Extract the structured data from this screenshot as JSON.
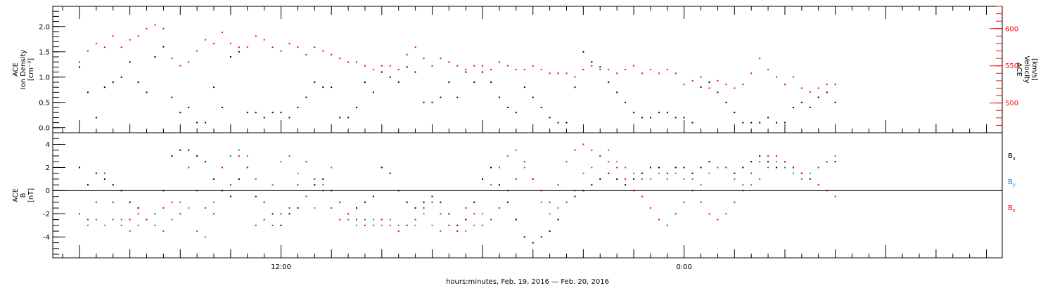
{
  "chart_data": [
    {
      "type": "scatter",
      "panel": "ion-density-velocity",
      "ylabel_left": [
        "ACE",
        "Ion Density",
        "[cm⁻³]"
      ],
      "ylabel_right": [
        "ACE",
        "Velocity",
        "[km/s]"
      ],
      "left_ticks": [
        "0.0",
        "0.5",
        "1.0",
        "1.5",
        "2.0"
      ],
      "right_ticks": [
        "500",
        "550",
        "600"
      ],
      "left_ylim": [
        -0.1,
        2.4
      ],
      "right_ylim": [
        460,
        630
      ],
      "left_color": "#000000",
      "right_color": "#ff0000",
      "series": [
        {
          "axis": "left",
          "color": "#000000",
          "x": [
            0.0,
            0.5,
            1.0,
            1.5,
            2.0,
            2.5,
            3.0,
            3.5,
            4.0,
            4.5,
            5.0,
            5.5,
            6.0,
            6.5,
            7.0,
            7.5,
            8.0,
            8.5,
            9.0,
            9.5,
            10.0,
            10.5,
            11.0,
            11.5,
            12.0,
            12.5,
            13.0,
            13.5,
            14.0,
            14.5,
            15.0,
            15.5,
            16.0,
            16.5,
            17.0,
            17.5,
            18.0,
            18.5,
            19.0,
            19.5,
            20.0,
            20.5,
            21.0,
            21.5,
            22.0,
            22.5,
            23.0,
            23.5,
            24.0,
            24.5,
            25.0,
            25.5,
            26.0,
            26.5,
            27.0,
            27.5,
            28.0,
            28.5,
            29.0,
            29.5,
            30.0,
            30.5,
            31.0,
            31.5,
            32.0,
            32.5,
            33.0,
            33.5,
            34.0,
            34.5,
            35.0,
            35.5,
            36.0,
            36.5,
            37.0,
            37.5,
            38.0,
            38.5,
            39.0,
            39.5,
            40.0,
            40.5,
            41.0,
            41.5,
            42.0,
            42.5,
            43.0,
            43.5,
            44.0,
            44.5,
            45.0
          ],
          "y": [
            1.2,
            0.7,
            0.2,
            0.8,
            0.9,
            1.0,
            1.3,
            0.9,
            0.7,
            1.4,
            1.6,
            0.6,
            0.3,
            0.4,
            0.1,
            0.1,
            0.8,
            0.4,
            1.4,
            1.5,
            0.3,
            0.3,
            0.2,
            0.3,
            0.3,
            0.2,
            0.4,
            0.6,
            0.9,
            0.8,
            0.8,
            0.2,
            0.2,
            0.4,
            0.9,
            0.7,
            1.1,
            1.0,
            0.9,
            1.2,
            1.1,
            0.5,
            0.5,
            0.6,
            0.9,
            0.6,
            1.1,
            0.9,
            1.1,
            0.9,
            0.6,
            0.4,
            0.3,
            0.8,
            0.6,
            0.4,
            0.2,
            0.1,
            0.1,
            0.8,
            1.5,
            1.3,
            1.2,
            0.9,
            0.7,
            0.5,
            0.3,
            0.2,
            0.2,
            0.3,
            0.3,
            0.2,
            0.2,
            0.1,
            0.8,
            0.9,
            0.7,
            0.5,
            0.3,
            0.1,
            0.1,
            0.1,
            0.2,
            0.1,
            0.1,
            0.4,
            0.5,
            0.4,
            0.6,
            0.7,
            0.5
          ]
        },
        {
          "axis": "right",
          "color": "#ff0000",
          "x": [
            0.0,
            0.5,
            1.0,
            1.5,
            2.0,
            2.5,
            3.0,
            3.5,
            4.0,
            4.5,
            5.0,
            5.5,
            6.0,
            6.5,
            7.0,
            7.5,
            8.0,
            8.5,
            9.0,
            9.5,
            10.0,
            10.5,
            11.0,
            11.5,
            12.0,
            12.5,
            13.0,
            13.5,
            14.0,
            14.5,
            15.0,
            15.5,
            16.0,
            16.5,
            17.0,
            17.5,
            18.0,
            18.5,
            19.0,
            19.5,
            20.0,
            20.5,
            21.0,
            21.5,
            22.0,
            22.5,
            23.0,
            23.5,
            24.0,
            24.5,
            25.0,
            25.5,
            26.0,
            26.5,
            27.0,
            27.5,
            28.0,
            28.5,
            29.0,
            29.5,
            30.0,
            30.5,
            31.0,
            31.5,
            32.0,
            32.5,
            33.0,
            33.5,
            34.0,
            34.5,
            35.0,
            35.5,
            36.0,
            36.5,
            37.0,
            37.5,
            38.0,
            38.5,
            39.0,
            39.5,
            40.0,
            40.5,
            41.0,
            41.5,
            42.0,
            42.5,
            43.0,
            43.5,
            44.0,
            44.5,
            45.0
          ],
          "y": [
            555,
            570,
            580,
            575,
            590,
            575,
            585,
            590,
            600,
            605,
            600,
            560,
            550,
            555,
            570,
            585,
            580,
            595,
            580,
            575,
            575,
            590,
            585,
            575,
            570,
            580,
            575,
            565,
            575,
            570,
            565,
            560,
            555,
            555,
            550,
            545,
            550,
            550,
            545,
            565,
            575,
            560,
            550,
            560,
            555,
            550,
            545,
            550,
            550,
            545,
            555,
            550,
            545,
            545,
            550,
            545,
            540,
            540,
            540,
            535,
            545,
            550,
            545,
            545,
            540,
            545,
            550,
            540,
            545,
            540,
            545,
            540,
            525,
            530,
            535,
            520,
            530,
            525,
            520,
            525,
            540,
            560,
            545,
            535,
            525,
            535,
            520,
            515,
            520,
            525,
            525
          ]
        }
      ]
    },
    {
      "type": "scatter",
      "panel": "magnetic-field",
      "ylabel": [
        "ACE",
        "B",
        "[nT]"
      ],
      "y_ticks": [
        "-4",
        "-2",
        "0",
        "2",
        "4"
      ],
      "ylim": [
        -5.8,
        5.0
      ],
      "x_range": [
        0,
        45
      ],
      "x_ticks": [
        {
          "x": 12,
          "label": "12:00"
        },
        {
          "x": 36,
          "label": "0:00"
        }
      ],
      "xlabel": "hours:minutes, Feb. 19, 2016 — Feb. 20, 2016",
      "zero_line": true,
      "series": [
        {
          "name": "Bx",
          "name_main": "B",
          "name_sub": "x",
          "color": "#000000",
          "x": [
            0.0,
            0.5,
            1.0,
            1.5,
            2.0,
            2.5,
            3.0,
            3.5,
            4.0,
            4.5,
            5.0,
            5.5,
            6.0,
            6.5,
            7.0,
            7.5,
            8.0,
            8.5,
            9.0,
            9.5,
            10.0,
            10.5,
            11.0,
            11.5,
            12.0,
            12.5,
            13.0,
            13.5,
            14.0,
            14.5,
            15.0,
            15.5,
            16.0,
            16.5,
            17.0,
            17.5,
            18.0,
            18.5,
            19.0,
            19.5,
            20.0,
            20.5,
            21.0,
            21.5,
            22.0,
            22.5,
            23.0,
            23.5,
            24.0,
            24.5,
            25.0,
            25.5,
            26.0,
            26.5,
            27.0,
            27.5,
            28.0,
            28.5,
            29.0,
            29.5,
            30.0,
            30.5,
            31.0,
            31.5,
            32.0,
            32.5,
            33.0,
            33.5,
            34.0,
            34.5,
            35.0,
            35.5,
            36.0,
            36.5,
            37.0,
            37.5,
            38.0,
            38.5,
            39.0,
            39.5,
            40.0,
            40.5,
            41.0,
            41.5,
            42.0,
            42.5,
            43.0,
            43.5,
            44.0,
            44.5,
            45.0
          ],
          "y": [
            2.0,
            0.5,
            1.5,
            1.0,
            0.5,
            0.0,
            -1.0,
            -1.5,
            -2.5,
            -2.0,
            0.0,
            3.0,
            3.5,
            3.5,
            3.0,
            2.5,
            1.0,
            0.0,
            -0.5,
            1.0,
            2.0,
            -0.5,
            -1.0,
            -2.0,
            -3.0,
            -2.0,
            -1.5,
            -0.5,
            0.5,
            1.0,
            0.0,
            -1.0,
            -2.0,
            -1.5,
            -1.0,
            -0.5,
            2.0,
            1.5,
            0.0,
            -1.0,
            -1.5,
            -1.0,
            -0.5,
            -1.0,
            -2.0,
            -3.0,
            -2.5,
            -1.0,
            1.0,
            2.0,
            0.5,
            -1.0,
            -2.5,
            -4.0,
            -4.5,
            -4.0,
            -3.5,
            -2.5,
            -1.0,
            -0.5,
            0.0,
            0.5,
            1.0,
            1.5,
            1.0,
            0.5,
            1.0,
            1.5,
            2.0,
            2.0,
            1.5,
            2.0,
            2.0,
            1.5,
            2.0,
            2.5,
            2.0,
            2.0,
            1.5,
            2.0,
            2.5,
            3.0,
            2.5,
            2.0,
            2.5,
            2.0,
            1.5,
            1.0,
            2.0,
            2.5,
            2.5
          ]
        },
        {
          "name": "By",
          "name_main": "B",
          "name_sub": "y",
          "color": "#1f7fd6",
          "x": [
            0.0,
            0.5,
            1.0,
            1.5,
            2.0,
            2.5,
            3.0,
            3.5,
            4.0,
            4.5,
            5.0,
            5.5,
            6.0,
            6.5,
            7.0,
            7.5,
            8.0,
            8.5,
            9.0,
            9.5,
            10.0,
            10.5,
            11.0,
            11.5,
            12.0,
            12.5,
            13.0,
            13.5,
            14.0,
            14.5,
            15.0,
            15.5,
            16.0,
            16.5,
            17.0,
            17.5,
            18.0,
            18.5,
            19.0,
            19.5,
            20.0,
            20.5,
            21.0,
            21.5,
            22.0,
            22.5,
            23.0,
            23.5,
            24.0,
            24.5,
            25.0,
            25.5,
            26.0,
            26.5,
            27.0,
            27.5,
            28.0,
            28.5,
            29.0,
            29.5,
            30.0,
            30.5,
            31.0,
            31.5,
            32.0,
            32.5,
            33.0,
            33.5,
            34.0,
            34.5,
            35.0,
            35.5,
            36.0,
            36.5,
            37.0,
            37.5,
            38.0,
            38.5,
            39.0,
            39.5,
            40.0,
            40.5,
            41.0,
            41.5,
            42.0,
            42.5,
            43.0,
            43.5,
            44.0,
            44.5,
            45.0
          ],
          "y": [
            -2.0,
            -3.0,
            -2.5,
            -3.0,
            -2.5,
            -2.5,
            -3.5,
            -3.0,
            -2.5,
            -2.0,
            -3.5,
            -2.5,
            -1.0,
            -1.5,
            -3.5,
            -4.0,
            -1.0,
            2.0,
            3.0,
            3.5,
            3.0,
            1.0,
            -1.0,
            0.5,
            2.5,
            3.0,
            1.5,
            -0.5,
            -1.5,
            0.5,
            2.0,
            -1.0,
            -2.5,
            -3.0,
            -2.5,
            -2.5,
            -3.0,
            -2.5,
            -3.0,
            -3.0,
            -3.0,
            -2.0,
            -3.0,
            -3.5,
            -3.0,
            -3.5,
            -3.5,
            -3.0,
            -2.0,
            0.5,
            2.0,
            3.0,
            3.5,
            2.0,
            1.0,
            -1.0,
            -2.0,
            -1.5,
            -1.0,
            0.0,
            1.5,
            2.0,
            3.0,
            3.5,
            2.5,
            2.0,
            1.5,
            1.0,
            1.0,
            1.5,
            1.0,
            1.5,
            1.0,
            1.0,
            0.5,
            1.5,
            2.0,
            2.0,
            1.0,
            0.5,
            0.5,
            1.0,
            2.0,
            2.5,
            2.0,
            1.5,
            1.0,
            1.5,
            2.0,
            2.5,
            3.0
          ]
        },
        {
          "name": "Bz",
          "name_main": "B",
          "name_sub": "z",
          "color": "#ff0000",
          "x": [
            0.0,
            0.5,
            1.0,
            1.5,
            2.0,
            2.5,
            3.0,
            3.5,
            4.0,
            4.5,
            5.0,
            5.5,
            6.0,
            6.5,
            7.0,
            7.5,
            8.0,
            8.5,
            9.0,
            9.5,
            10.0,
            10.5,
            11.0,
            11.5,
            12.0,
            12.5,
            13.0,
            13.5,
            14.0,
            14.5,
            15.0,
            15.5,
            16.0,
            16.5,
            17.0,
            17.5,
            18.0,
            18.5,
            19.0,
            19.5,
            20.0,
            20.5,
            21.0,
            21.5,
            22.0,
            22.5,
            23.0,
            23.5,
            24.0,
            24.5,
            25.0,
            25.5,
            26.0,
            26.5,
            27.0,
            27.5,
            28.0,
            28.5,
            29.0,
            29.5,
            30.0,
            30.5,
            31.0,
            31.5,
            32.0,
            32.5,
            33.0,
            33.5,
            34.0,
            34.5,
            35.0,
            35.5,
            36.0,
            36.5,
            37.0,
            37.5,
            38.0,
            38.5,
            39.0,
            39.5,
            40.0,
            40.5,
            41.0,
            41.5,
            42.0,
            42.5,
            43.0,
            43.5,
            44.0,
            44.5,
            45.0
          ],
          "y": [
            -2.0,
            -2.5,
            -1.0,
            1.5,
            -1.0,
            -3.0,
            -2.5,
            -2.0,
            -2.5,
            -3.0,
            -1.5,
            -1.0,
            -2.0,
            2.0,
            0.0,
            -1.5,
            -2.0,
            2.0,
            0.5,
            3.0,
            2.0,
            -3.0,
            -2.5,
            -3.0,
            -2.0,
            -1.5,
            0.5,
            2.5,
            1.0,
            0.0,
            -1.5,
            -2.5,
            -2.0,
            -2.5,
            -3.0,
            -3.0,
            -2.5,
            -3.0,
            -3.5,
            -3.0,
            -2.5,
            -1.5,
            -1.0,
            -2.0,
            -3.0,
            -3.5,
            -1.5,
            -2.0,
            -3.0,
            -2.5,
            -1.5,
            0.0,
            1.0,
            2.5,
            1.0,
            0.0,
            -1.0,
            0.5,
            2.5,
            3.5,
            4.0,
            3.5,
            3.0,
            2.5,
            2.0,
            1.0,
            0.0,
            -0.5,
            -1.5,
            -2.5,
            -3.0,
            -2.0,
            -1.0,
            0.0,
            -1.0,
            -2.0,
            -2.5,
            -2.0,
            -1.0,
            0.0,
            1.5,
            2.5,
            3.0,
            3.0,
            2.5,
            2.0,
            1.5,
            1.0,
            0.5,
            0.0,
            -0.5
          ]
        }
      ]
    }
  ]
}
